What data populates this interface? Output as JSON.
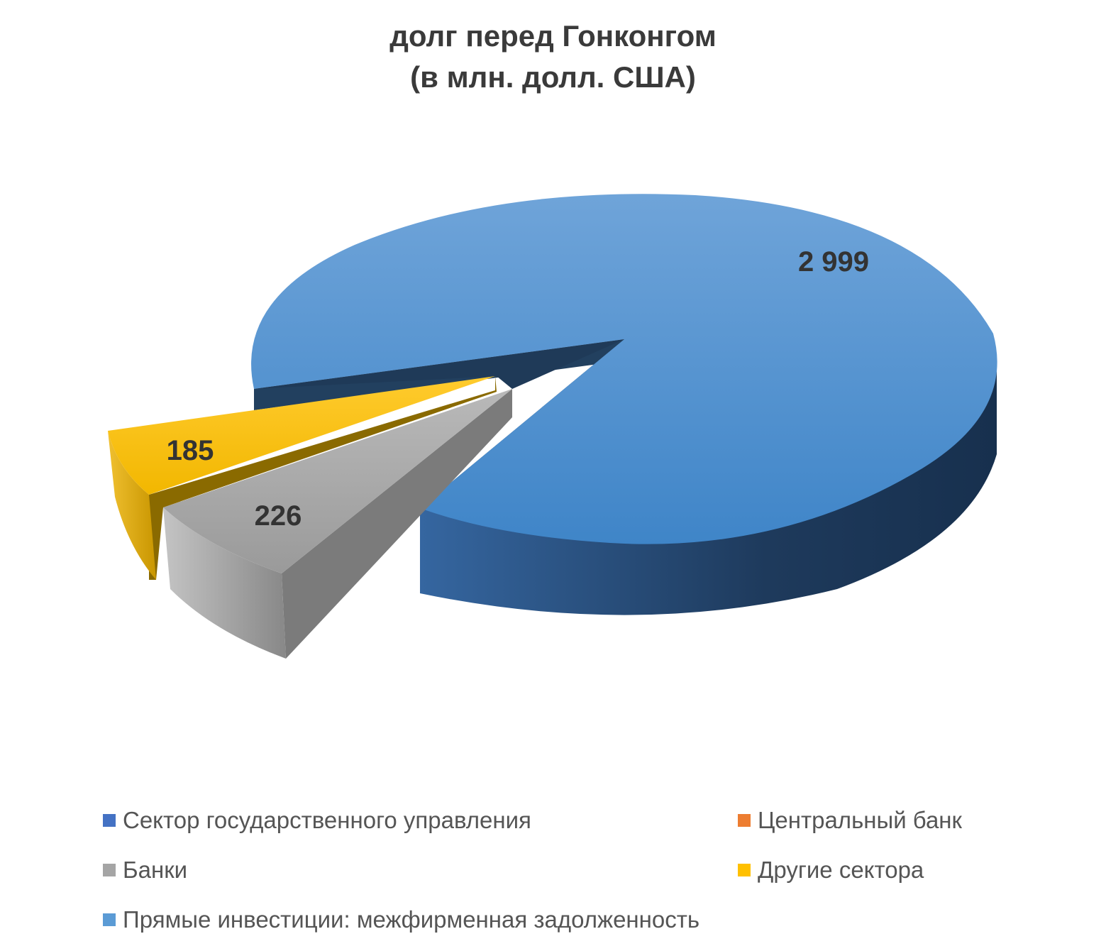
{
  "chart_data": {
    "type": "pie",
    "title_lines": [
      "долг перед Гонконгом",
      "(в млн. долл. США)"
    ],
    "categories": [
      "Сектор государственного управления",
      "Центральный банк",
      "Банки",
      "Другие сектора",
      "Прямые инвестиции: межфирменная задолженность"
    ],
    "values": [
      0,
      0,
      226,
      185,
      2999
    ],
    "data_labels": [
      "",
      "",
      "226",
      "185",
      "2 999"
    ],
    "colors": [
      "#4472c4",
      "#ed7d31",
      "#a5a5a5",
      "#ffc000",
      "#5b9bd5"
    ],
    "legend_position": "bottom"
  }
}
